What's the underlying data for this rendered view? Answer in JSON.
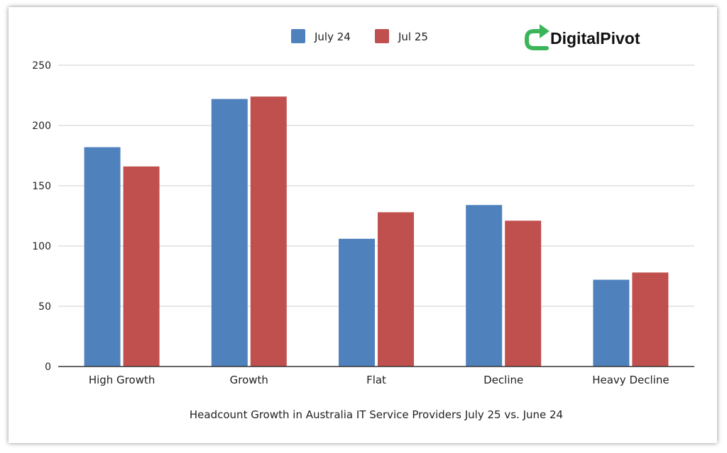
{
  "brand": {
    "name": "DigitalPivot",
    "icon": "refresh-arrow-icon",
    "icon_color": "#3cb55a"
  },
  "chart_data": {
    "type": "bar",
    "title": "",
    "xlabel": "Headcount Growth in Australia IT Service Providers July 25 vs. June 24",
    "ylabel": "",
    "categories": [
      "High Growth",
      "Growth",
      "Flat",
      "Decline",
      "Heavy Decline"
    ],
    "series": [
      {
        "name": "July 24",
        "color": "#4f81bd",
        "values": [
          182,
          222,
          106,
          134,
          72
        ]
      },
      {
        "name": "Jul 25",
        "color": "#c0504d",
        "values": [
          166,
          224,
          128,
          121,
          78
        ]
      }
    ],
    "ylim": [
      0,
      250
    ],
    "yticks": [
      0,
      50,
      100,
      150,
      200,
      250
    ],
    "grid": true,
    "legend_position": "top"
  }
}
